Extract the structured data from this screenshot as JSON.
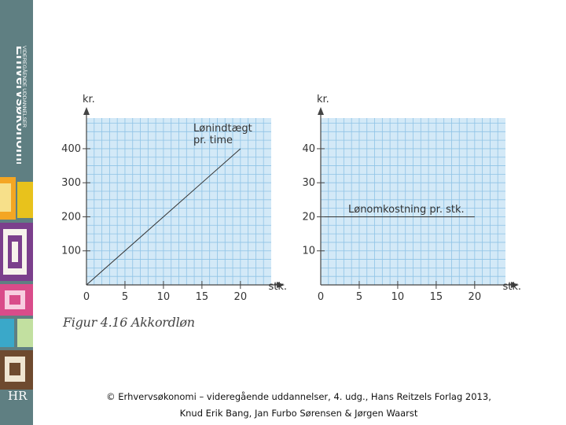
{
  "sidebar": {
    "brand": "Erhvervsøkonomi",
    "subtitle": "VIDEREGÅENDE UDDANNELSER",
    "publisher_logo": "HR"
  },
  "figure": {
    "caption": "Figur 4.16 Akkordløn"
  },
  "footer": {
    "line1": "© Erhvervsøkonomi – videregående uddannelser, 4. udg., Hans Reitzels Forlag 2013,",
    "line2": "Knud Erik Bang, Jan Furbo Sørensen & Jørgen Waarst"
  },
  "colors": {
    "plot_bg": "#d3e9f7",
    "grid": "#8fc3e6",
    "line": "#333333",
    "sidebar": "#5f7f82"
  },
  "chart_data": [
    {
      "type": "line",
      "xlabel": "stk.",
      "ylabel": "kr.",
      "xlim": [
        0,
        24
      ],
      "ylim": [
        0,
        490
      ],
      "x_ticks": [
        0,
        5,
        10,
        15,
        20
      ],
      "y_ticks": [
        100,
        200,
        300,
        400
      ],
      "grid": true,
      "series": [
        {
          "name": "Lønindtægt pr. time",
          "x": [
            0,
            20
          ],
          "y": [
            0,
            400
          ]
        }
      ],
      "annotation": [
        "Lønindtægt",
        "pr. time"
      ]
    },
    {
      "type": "line",
      "xlabel": "stk.",
      "ylabel": "kr.",
      "xlim": [
        0,
        24
      ],
      "ylim": [
        0,
        49
      ],
      "x_ticks": [
        0,
        5,
        10,
        15,
        20
      ],
      "y_ticks": [
        10,
        20,
        30,
        40
      ],
      "grid": true,
      "series": [
        {
          "name": "Lønomkostning pr. stk.",
          "x": [
            0.5,
            20
          ],
          "y": [
            20,
            20
          ]
        }
      ],
      "annotation": [
        "Lønomkostning pr. stk."
      ]
    }
  ]
}
